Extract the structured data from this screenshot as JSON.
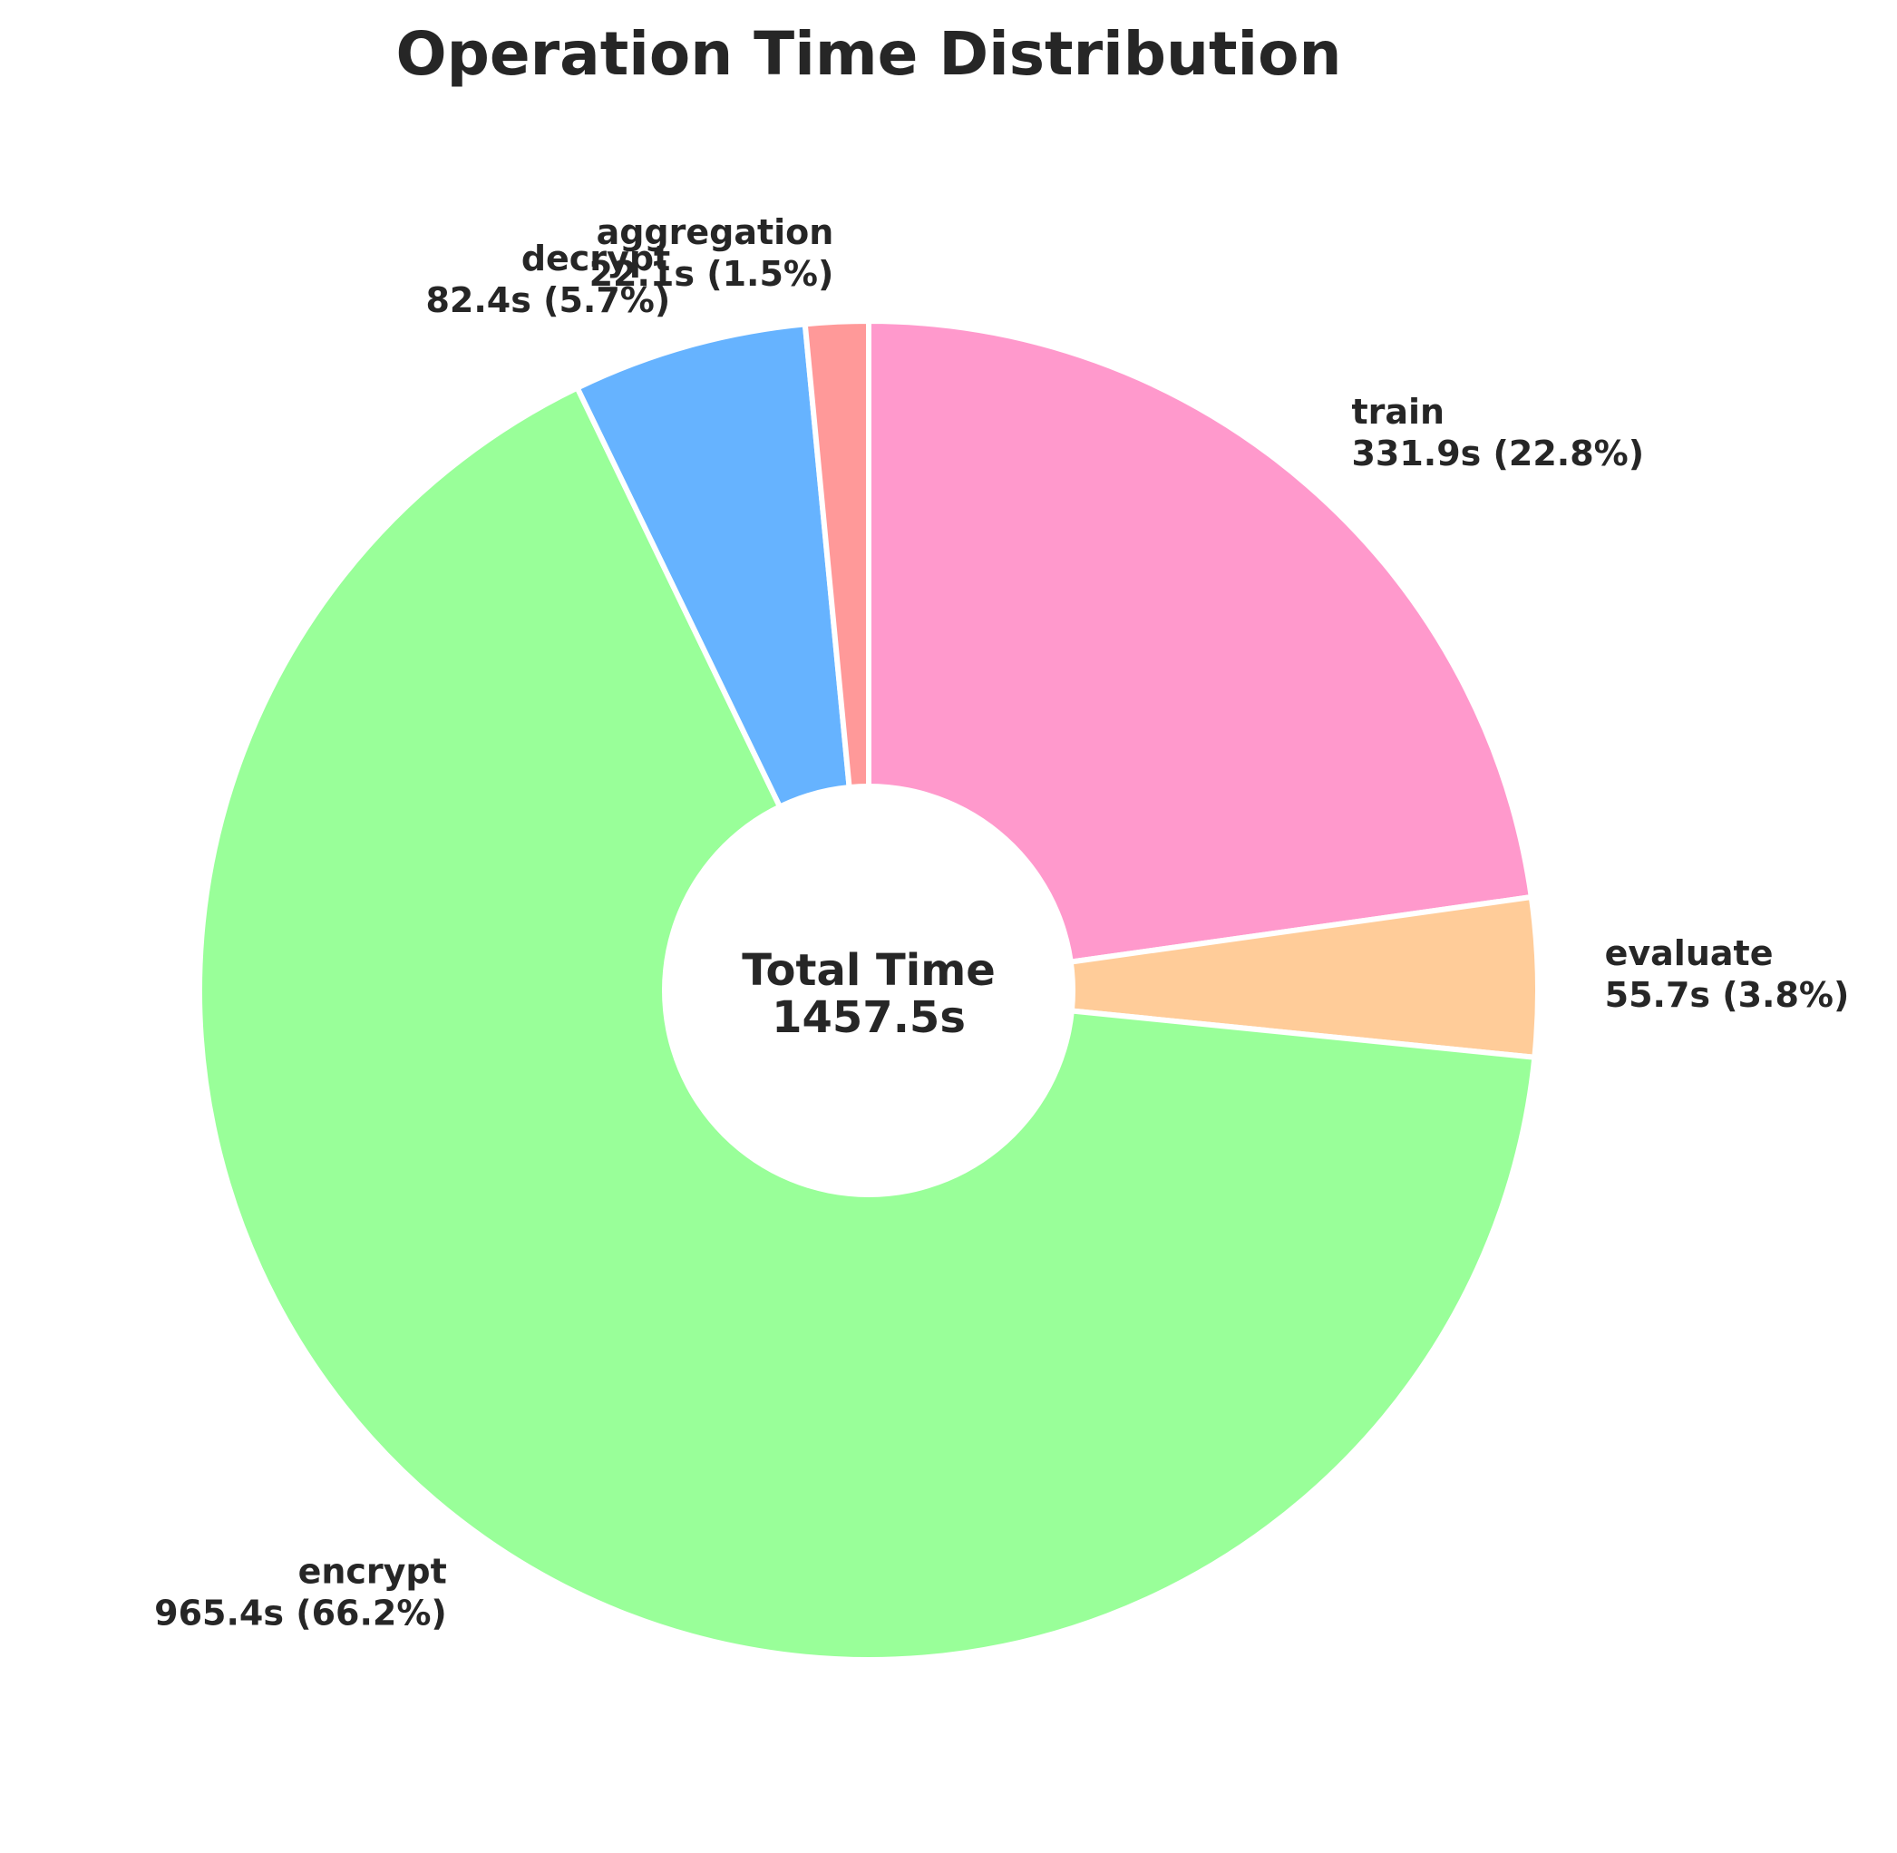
{
  "chart_data": {
    "type": "pie",
    "variant": "donut",
    "title": "Operation Time Distribution",
    "center_label": {
      "line1": "Total Time",
      "line2": "1457.5s"
    },
    "start_angle_deg": 90,
    "direction": "clockwise",
    "slices": [
      {
        "name": "train",
        "value": 331.9,
        "value_label": "331.9s (22.8%)",
        "percent": 22.8,
        "color": "#ff99cc"
      },
      {
        "name": "evaluate",
        "value": 55.7,
        "value_label": "55.7s (3.8%)",
        "percent": 3.8,
        "color": "#ffcc99"
      },
      {
        "name": "encrypt",
        "value": 965.4,
        "value_label": "965.4s (66.2%)",
        "percent": 66.2,
        "color": "#99ff99"
      },
      {
        "name": "decrypt",
        "value": 82.4,
        "value_label": "82.4s (5.7%)",
        "percent": 5.7,
        "color": "#66b3ff"
      },
      {
        "name": "aggregation",
        "value": 22.1,
        "value_label": "22.1s (1.5%)",
        "percent": 1.5,
        "color": "#ff9999"
      }
    ],
    "legend": "none",
    "grid": false
  }
}
